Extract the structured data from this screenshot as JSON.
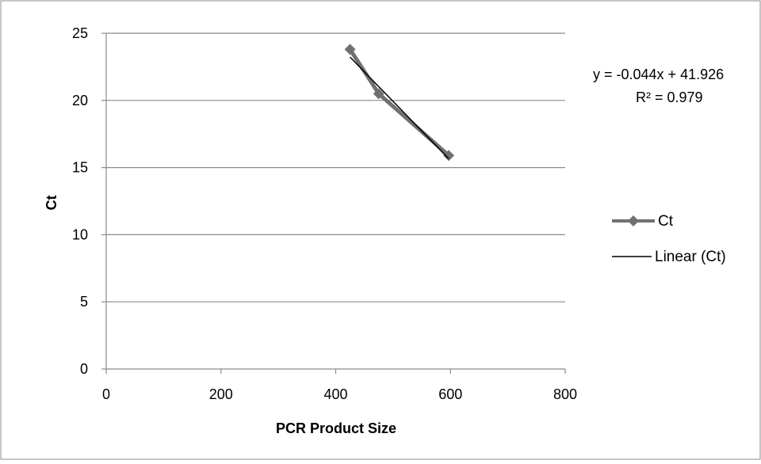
{
  "chart_data": {
    "type": "scatter",
    "title": "",
    "xlabel": "PCR Product Size",
    "ylabel": "Ct",
    "xlim": [
      0,
      800
    ],
    "ylim": [
      0,
      25
    ],
    "x_ticks": [
      0,
      200,
      400,
      600,
      800
    ],
    "y_ticks": [
      0,
      5,
      10,
      15,
      20,
      25
    ],
    "x_tick_labels": [
      "0",
      "200",
      "400",
      "600",
      "800"
    ],
    "y_tick_labels": [
      "0",
      "5",
      "10",
      "15",
      "20",
      "25"
    ],
    "grid": "horizontal",
    "legend_position": "right",
    "series": [
      {
        "name": "Ct",
        "style": "line-with-diamond-markers",
        "color": "#707070",
        "x": [
          425,
          475,
          597
        ],
        "y": [
          23.8,
          20.5,
          15.9
        ]
      }
    ],
    "trendline": {
      "name": "Linear (Ct)",
      "type": "linear",
      "color": "#000000",
      "slope": -0.044,
      "intercept": 41.926,
      "x_range": [
        425,
        597
      ]
    },
    "annotations": {
      "equation": "y = -0.044x + 41.926",
      "r_squared": "R² = 0.979"
    }
  }
}
